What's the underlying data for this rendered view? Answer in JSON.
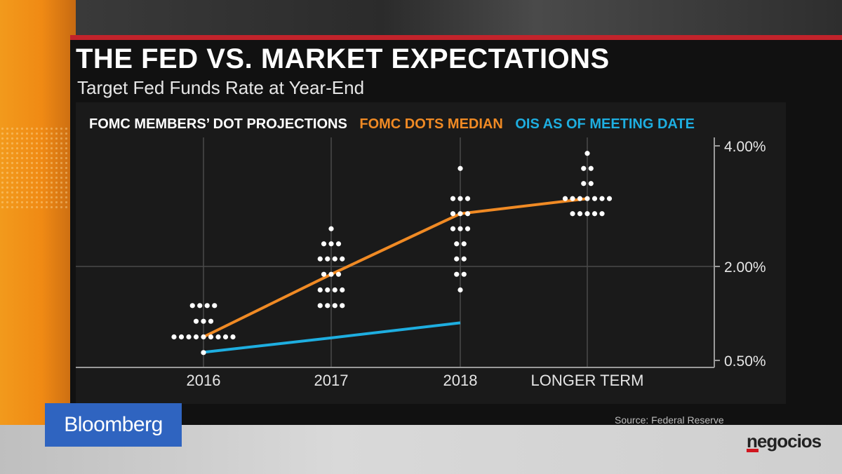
{
  "header": {
    "title": "THE FED VS. MARKET EXPECTATIONS",
    "subtitle": "Target Fed Funds Rate at Year-End"
  },
  "legend": [
    {
      "label": "FOMC MEMBERS’ DOT PROJECTIONS",
      "color": "#ffffff"
    },
    {
      "label": "FOMC DOTS MEDIAN",
      "color": "#f08a24"
    },
    {
      "label": "OIS AS OF MEETING DATE",
      "color": "#1eaee0"
    }
  ],
  "source": "Source: Federal Reserve",
  "branding": {
    "left_logo": "Bloomberg",
    "right_logo": "negocios"
  },
  "chart_data": {
    "type": "scatter",
    "title": "THE FED VS. MARKET EXPECTATIONS",
    "subtitle": "Target Fed Funds Rate at Year-End",
    "categories": [
      "2016",
      "2017",
      "2018",
      "LONGER TERM"
    ],
    "y_tick_labels": [
      "4.00%",
      "2.00%",
      "0.50%"
    ],
    "y_ticks": [
      4.0,
      2.0,
      0.5
    ],
    "ylim": [
      0.5,
      4.0
    ],
    "grid": true,
    "dot_projections": [
      {
        "category": "2016",
        "levels": [
          {
            "rate": 1.375,
            "count": 4
          },
          {
            "rate": 1.125,
            "count": 3
          },
          {
            "rate": 0.875,
            "count": 9
          },
          {
            "rate": 0.625,
            "count": 1
          }
        ]
      },
      {
        "category": "2017",
        "levels": [
          {
            "rate": 2.625,
            "count": 1
          },
          {
            "rate": 2.375,
            "count": 3
          },
          {
            "rate": 2.125,
            "count": 4
          },
          {
            "rate": 1.875,
            "count": 3
          },
          {
            "rate": 1.625,
            "count": 4
          },
          {
            "rate": 1.375,
            "count": 4
          }
        ]
      },
      {
        "category": "2018",
        "levels": [
          {
            "rate": 3.625,
            "count": 1
          },
          {
            "rate": 3.125,
            "count": 3
          },
          {
            "rate": 2.875,
            "count": 3
          },
          {
            "rate": 2.625,
            "count": 3
          },
          {
            "rate": 2.375,
            "count": 2
          },
          {
            "rate": 2.125,
            "count": 2
          },
          {
            "rate": 1.875,
            "count": 2
          },
          {
            "rate": 1.625,
            "count": 1
          }
        ]
      },
      {
        "category": "LONGER TERM",
        "levels": [
          {
            "rate": 3.875,
            "count": 1
          },
          {
            "rate": 3.625,
            "count": 2
          },
          {
            "rate": 3.375,
            "count": 2
          },
          {
            "rate": 3.125,
            "count": 7
          },
          {
            "rate": 2.875,
            "count": 5
          }
        ]
      }
    ],
    "series": [
      {
        "name": "FOMC DOTS MEDIAN",
        "color": "#f08a24",
        "categories": [
          "2016",
          "2017",
          "2018",
          "LONGER TERM"
        ],
        "values": [
          0.875,
          1.875,
          2.875,
          3.125
        ]
      },
      {
        "name": "OIS AS OF MEETING DATE",
        "color": "#1eaee0",
        "categories": [
          "2016",
          "2017",
          "2018"
        ],
        "values": [
          0.63,
          0.86,
          1.1
        ]
      }
    ]
  }
}
